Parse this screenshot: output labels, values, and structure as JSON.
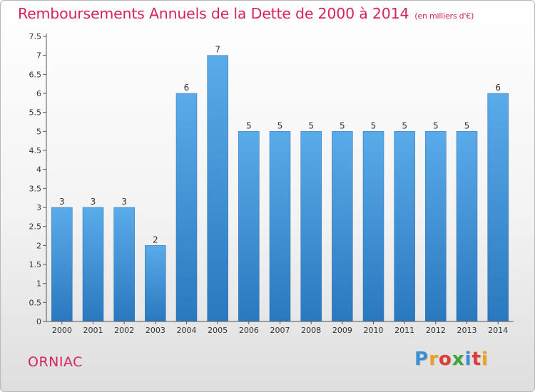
{
  "header": {
    "title": "Remboursements Annuels de la Dette de 2000 à 2014",
    "unit": "(en milliers d'€)"
  },
  "footer": {
    "place": "ORNIAC",
    "logo": [
      "P",
      "r",
      "o",
      "x",
      "i",
      "t",
      "i"
    ],
    "logo_colors": [
      "#3a8fd6",
      "#f0a020",
      "#e03a3a",
      "#3aa83a",
      "#3a8fd6",
      "#e03a3a",
      "#f0a020"
    ]
  },
  "chart_data": {
    "type": "bar",
    "title": "Remboursements Annuels de la Dette de 2000 à 2014",
    "xlabel": "",
    "ylabel": "",
    "categories": [
      "2000",
      "2001",
      "2002",
      "2003",
      "2004",
      "2005",
      "2006",
      "2007",
      "2008",
      "2009",
      "2010",
      "2011",
      "2012",
      "2013",
      "2014"
    ],
    "values": [
      3,
      3,
      3,
      2,
      6,
      7,
      5,
      5,
      5,
      5,
      5,
      5,
      5,
      5,
      6
    ],
    "ylim": [
      0,
      7.5
    ],
    "yticks": [
      0,
      0.5,
      1,
      1.5,
      2,
      2.5,
      3,
      3.5,
      4,
      4.5,
      5,
      5.5,
      6,
      6.5,
      7,
      7.5
    ],
    "grid": false,
    "bar_color": "#4f9fe0"
  }
}
